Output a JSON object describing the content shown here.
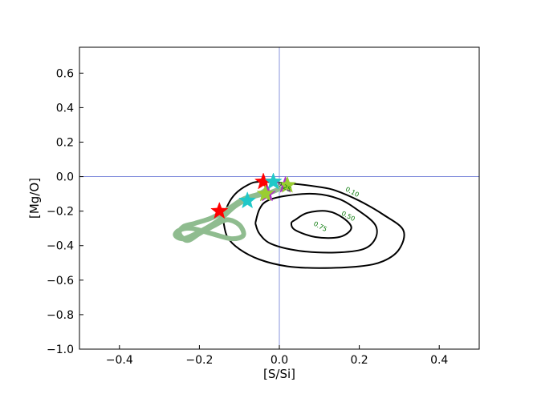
{
  "chart_data": {
    "type": "scatter",
    "title": "",
    "xlabel": "[S/Si]",
    "ylabel": "[Mg/O]",
    "xlim": [
      -0.5,
      0.5
    ],
    "ylim": [
      -1.0,
      0.75
    ],
    "xticks": [
      -0.4,
      -0.2,
      0.0,
      0.2,
      0.4
    ],
    "xtick_labels": [
      "−0.4",
      "−0.2",
      "0.0",
      "0.2",
      "0.4"
    ],
    "yticks": [
      -1.0,
      -0.8,
      -0.6,
      -0.4,
      -0.2,
      0.0,
      0.2,
      0.4,
      0.6
    ],
    "ytick_labels": [
      "−1.0",
      "−0.8",
      "−0.6",
      "−0.4",
      "−0.2",
      "0.0",
      "0.2",
      "0.4",
      "0.6"
    ],
    "reference_lines": {
      "x": 0.0,
      "y": 0.0,
      "color": "#6c7ad6"
    },
    "grid": false,
    "legend": "none",
    "contours": [
      {
        "level": "0.10",
        "color": "#000000",
        "points": [
          [
            -0.14,
            -0.26
          ],
          [
            -0.13,
            -0.17
          ],
          [
            -0.11,
            -0.1
          ],
          [
            -0.08,
            -0.05
          ],
          [
            -0.05,
            -0.03
          ],
          [
            0.03,
            -0.04
          ],
          [
            0.1,
            -0.06
          ],
          [
            0.14,
            -0.08
          ],
          [
            0.2,
            -0.14
          ],
          [
            0.26,
            -0.22
          ],
          [
            0.31,
            -0.31
          ],
          [
            0.3,
            -0.42
          ],
          [
            0.26,
            -0.49
          ],
          [
            0.2,
            -0.52
          ],
          [
            0.1,
            -0.53
          ],
          [
            0.02,
            -0.52
          ],
          [
            -0.05,
            -0.48
          ],
          [
            -0.1,
            -0.42
          ],
          [
            -0.13,
            -0.35
          ],
          [
            -0.14,
            -0.26
          ]
        ]
      },
      {
        "level": "0.50",
        "color": "#000000",
        "points": [
          [
            -0.06,
            -0.27
          ],
          [
            -0.05,
            -0.19
          ],
          [
            -0.03,
            -0.14
          ],
          [
            0.02,
            -0.11
          ],
          [
            0.09,
            -0.1
          ],
          [
            0.15,
            -0.13
          ],
          [
            0.2,
            -0.2
          ],
          [
            0.24,
            -0.28
          ],
          [
            0.24,
            -0.36
          ],
          [
            0.21,
            -0.42
          ],
          [
            0.14,
            -0.44
          ],
          [
            0.05,
            -0.43
          ],
          [
            -0.02,
            -0.39
          ],
          [
            -0.05,
            -0.33
          ],
          [
            -0.06,
            -0.27
          ]
        ]
      },
      {
        "level": "0.75",
        "color": "#000000",
        "points": [
          [
            0.04,
            -0.25
          ],
          [
            0.07,
            -0.21
          ],
          [
            0.12,
            -0.2
          ],
          [
            0.16,
            -0.24
          ],
          [
            0.18,
            -0.3
          ],
          [
            0.15,
            -0.35
          ],
          [
            0.09,
            -0.35
          ],
          [
            0.04,
            -0.31
          ],
          [
            0.03,
            -0.27
          ],
          [
            0.04,
            -0.25
          ]
        ]
      }
    ],
    "contour_labels": [
      {
        "text": "0.10",
        "x": 0.18,
        "y": -0.1
      },
      {
        "text": "0.50",
        "x": 0.17,
        "y": -0.24
      },
      {
        "text": "0.75",
        "x": 0.1,
        "y": -0.3
      },
      {
        "text": "0.25",
        "x": 0.01,
        "y": -0.07
      }
    ],
    "track": {
      "color": "#8fbc8f",
      "points": [
        [
          -0.03,
          -0.07
        ],
        [
          -0.05,
          -0.1
        ],
        [
          -0.09,
          -0.13
        ],
        [
          -0.13,
          -0.19
        ],
        [
          -0.17,
          -0.24
        ],
        [
          -0.21,
          -0.27
        ],
        [
          -0.24,
          -0.29
        ],
        [
          -0.25,
          -0.33
        ],
        [
          -0.23,
          -0.37
        ],
        [
          -0.2,
          -0.33
        ],
        [
          -0.16,
          -0.28
        ],
        [
          -0.13,
          -0.25
        ],
        [
          -0.1,
          -0.28
        ],
        [
          -0.09,
          -0.34
        ],
        [
          -0.12,
          -0.36
        ],
        [
          -0.17,
          -0.33
        ],
        [
          -0.22,
          -0.3
        ],
        [
          -0.25,
          -0.31
        ],
        [
          -0.26,
          -0.34
        ],
        [
          -0.24,
          -0.36
        ],
        [
          -0.2,
          -0.32
        ],
        [
          -0.15,
          -0.25
        ],
        [
          -0.11,
          -0.17
        ],
        [
          -0.07,
          -0.12
        ],
        [
          -0.02,
          -0.09
        ],
        [
          0.0,
          -0.07
        ]
      ]
    },
    "stars": [
      {
        "x": -0.04,
        "y": -0.03,
        "color": "#ff0000"
      },
      {
        "x": -0.15,
        "y": -0.2,
        "color": "#ff0000"
      },
      {
        "x": -0.015,
        "y": -0.03,
        "color": "#20c8c8"
      },
      {
        "x": -0.08,
        "y": -0.14,
        "color": "#20c8c8"
      },
      {
        "x": 0.015,
        "y": -0.05,
        "color": "#b030c8"
      },
      {
        "x": -0.03,
        "y": -0.1,
        "color": "#b030c8"
      },
      {
        "x": 0.02,
        "y": -0.05,
        "color": "#9acd32"
      },
      {
        "x": -0.035,
        "y": -0.1,
        "color": "#9acd32"
      }
    ]
  }
}
